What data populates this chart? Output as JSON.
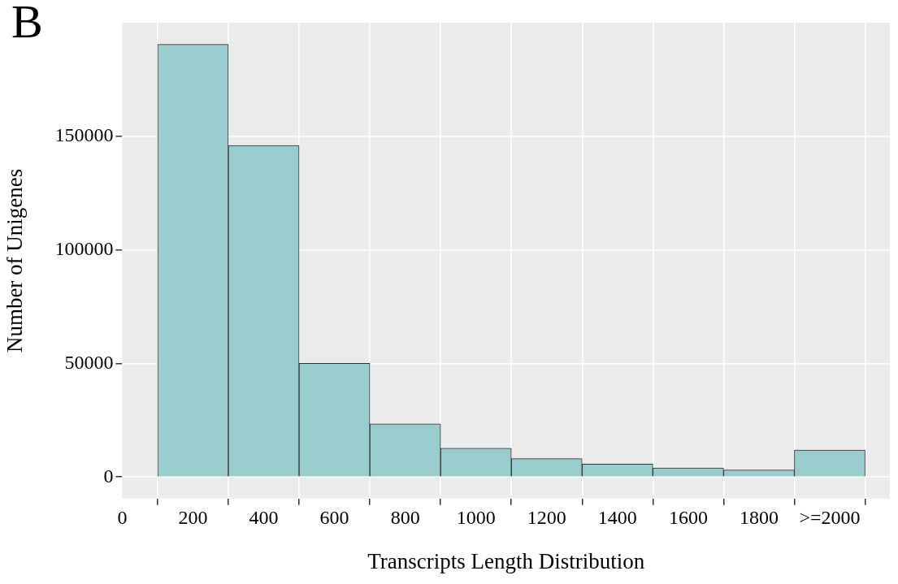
{
  "chart_data": {
    "type": "histogram",
    "xlabel": "Transcripts Length Distribution",
    "ylabel": "Number of Unigenes",
    "annotations": [
      "B"
    ],
    "bins": [
      100,
      300,
      500,
      700,
      900,
      1100,
      1300,
      1500,
      1700,
      1900,
      2100
    ],
    "values": [
      190500,
      146000,
      50000,
      23400,
      12700,
      8100,
      5700,
      4000,
      3100,
      11900
    ],
    "color": "#99cccc",
    "xlim": [
      0,
      2170
    ],
    "xticks": [
      0,
      200,
      400,
      600,
      800,
      1000,
      1200,
      1400,
      1600,
      1800,
      {
        "value": 2000,
        "label": ">=2000"
      }
    ],
    "ylim": [
      -9500,
      200000
    ],
    "yticks": [
      0,
      50000,
      100000,
      150000
    ],
    "grid": true
  }
}
